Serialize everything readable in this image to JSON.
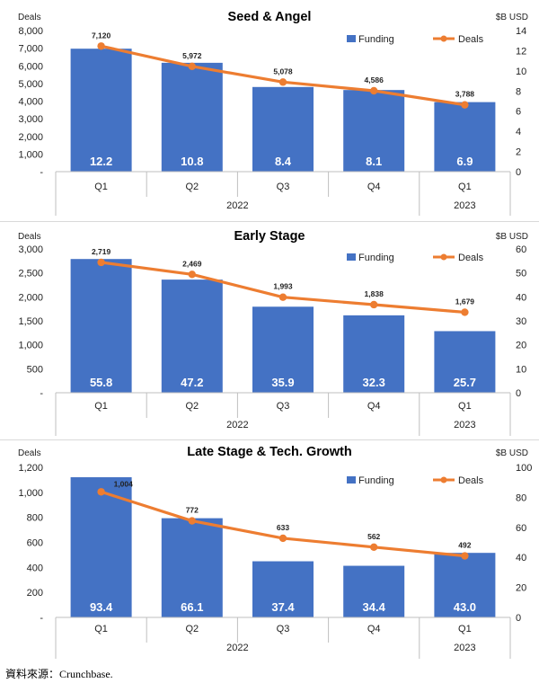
{
  "source_note": "資料來源：Crunchbase.",
  "chart_data": [
    {
      "type": "bar+line",
      "title": "Seed & Angel",
      "left_axis_label": "Deals",
      "right_axis_label": "$B USD",
      "left_ylim": [
        0,
        8000
      ],
      "left_ticks": [
        "-",
        "1,000",
        "2,000",
        "3,000",
        "4,000",
        "5,000",
        "6,000",
        "7,000",
        "8,000"
      ],
      "right_ylim": [
        0,
        14
      ],
      "right_ticks": [
        "0",
        "2",
        "4",
        "6",
        "8",
        "10",
        "12",
        "14"
      ],
      "categories": [
        "Q1",
        "Q2",
        "Q3",
        "Q4",
        "Q1"
      ],
      "years": [
        {
          "label": "2022",
          "span": [
            0,
            3
          ]
        },
        {
          "label": "2023",
          "span": [
            4,
            4
          ]
        }
      ],
      "legend": [
        "Funding",
        "Deals"
      ],
      "funding": [
        12.2,
        10.8,
        8.4,
        8.1,
        6.9
      ],
      "funding_labels": [
        "12.2",
        "10.8",
        "8.4",
        "8.1",
        "6.9"
      ],
      "deals": [
        7120,
        5972,
        5078,
        4586,
        3788
      ],
      "deal_labels": [
        "7,120",
        "5,972",
        "5,078",
        "4,586",
        "3,788"
      ],
      "bar_color": "#4472C4",
      "line_color": "#ED7D31"
    },
    {
      "type": "bar+line",
      "title": "Early Stage",
      "left_axis_label": "Deals",
      "right_axis_label": "$B USD",
      "left_ylim": [
        0,
        3000
      ],
      "left_ticks": [
        "-",
        "500",
        "1,000",
        "1,500",
        "2,000",
        "2,500",
        "3,000"
      ],
      "right_ylim": [
        0,
        60
      ],
      "right_ticks": [
        "0",
        "10",
        "20",
        "30",
        "40",
        "50",
        "60"
      ],
      "categories": [
        "Q1",
        "Q2",
        "Q3",
        "Q4",
        "Q1"
      ],
      "years": [
        {
          "label": "2022",
          "span": [
            0,
            3
          ]
        },
        {
          "label": "2023",
          "span": [
            4,
            4
          ]
        }
      ],
      "legend": [
        "Funding",
        "Deals"
      ],
      "funding": [
        55.8,
        47.2,
        35.9,
        32.3,
        25.7
      ],
      "funding_labels": [
        "55.8",
        "47.2",
        "35.9",
        "32.3",
        "25.7"
      ],
      "deals": [
        2719,
        2469,
        1993,
        1838,
        1679
      ],
      "deal_labels": [
        "2,719",
        "2,469",
        "1,993",
        "1,838",
        "1,679"
      ],
      "bar_color": "#4472C4",
      "line_color": "#ED7D31"
    },
    {
      "type": "bar+line",
      "title": "Late Stage & Tech. Growth",
      "left_axis_label": "Deals",
      "right_axis_label": "$B USD",
      "left_ylim": [
        0,
        1200
      ],
      "left_ticks": [
        "-",
        "200",
        "400",
        "600",
        "800",
        "1,000",
        "1,200"
      ],
      "right_ylim": [
        0,
        100
      ],
      "right_ticks": [
        "0",
        "20",
        "40",
        "60",
        "80",
        "100"
      ],
      "categories": [
        "Q1",
        "Q2",
        "Q3",
        "Q4",
        "Q1"
      ],
      "years": [
        {
          "label": "2022",
          "span": [
            0,
            3
          ]
        },
        {
          "label": "2023",
          "span": [
            4,
            4
          ]
        }
      ],
      "legend": [
        "Funding",
        "Deals"
      ],
      "funding": [
        93.4,
        66.1,
        37.4,
        34.4,
        43.0
      ],
      "funding_labels": [
        "93.4",
        "66.1",
        "37.4",
        "34.4",
        "43.0"
      ],
      "deals": [
        1004,
        772,
        633,
        562,
        492
      ],
      "deal_labels": [
        "1,004",
        "772",
        "633",
        "562",
        "492"
      ],
      "bar_color": "#4472C4",
      "line_color": "#ED7D31"
    }
  ]
}
